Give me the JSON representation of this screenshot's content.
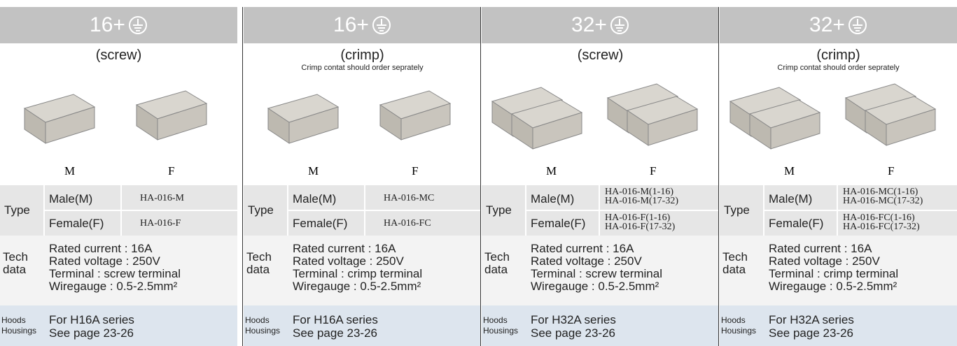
{
  "columns": [
    {
      "header": "16+",
      "variant": "(screw)",
      "m_label": "M",
      "f_label": "F",
      "type_label": "Type",
      "male_label": "Male(M)",
      "male_codes": [
        "HA-016-M"
      ],
      "female_label": "Female(F)",
      "female_codes": [
        "HA-016-F"
      ],
      "tech_label": [
        "Tech",
        "data"
      ],
      "tech": [
        "Rated current : 16A",
        "Rated voltage : 250V",
        "Terminal : screw terminal",
        "Wiregauge : 0.5-2.5mm²"
      ],
      "hoods_label": [
        "Hoods",
        "Housings"
      ],
      "hoods": [
        "For H16A series",
        "See page 23-26"
      ]
    },
    {
      "header": "16+",
      "variant": "(crimp)",
      "note": "Crimp contat should order seprately",
      "m_label": "M",
      "f_label": "F",
      "type_label": "Type",
      "male_label": "Male(M)",
      "male_codes": [
        "HA-016-MC"
      ],
      "female_label": "Female(F)",
      "female_codes": [
        "HA-016-FC"
      ],
      "tech_label": [
        "Tech",
        "data"
      ],
      "tech": [
        "Rated current : 16A",
        "Rated voltage : 250V",
        "Terminal : crimp terminal",
        "Wiregauge : 0.5-2.5mm²"
      ],
      "hoods_label": [
        "Hoods",
        "Housings"
      ],
      "hoods": [
        "For H16A series",
        "See page 23-26"
      ]
    },
    {
      "header": "32+",
      "variant": "(screw)",
      "m_label": "M",
      "f_label": "F",
      "type_label": "Type",
      "male_label": "Male(M)",
      "male_codes": [
        "HA-016-M(1-16)",
        "HA-016-M(17-32)"
      ],
      "female_label": "Female(F)",
      "female_codes": [
        "HA-016-F(1-16)",
        "HA-016-F(17-32)"
      ],
      "tech_label": [
        "Tech",
        "data"
      ],
      "tech": [
        "Rated current : 16A",
        "Rated voltage : 250V",
        "Terminal : screw terminal",
        "Wiregauge : 0.5-2.5mm²"
      ],
      "hoods_label": [
        "Hoods",
        "Housings"
      ],
      "hoods": [
        "For H32A series",
        "See page 23-26"
      ]
    },
    {
      "header": "32+",
      "variant": "(crimp)",
      "note": "Crimp contat should order seprately",
      "m_label": "M",
      "f_label": "F",
      "type_label": "Type",
      "male_label": "Male(M)",
      "male_codes": [
        "HA-016-MC(1-16)",
        "HA-016-MC(17-32)"
      ],
      "female_label": "Female(F)",
      "female_codes": [
        "HA-016-FC(1-16)",
        "HA-016-FC(17-32)"
      ],
      "tech_label": [
        "Tech",
        "data"
      ],
      "tech": [
        "Rated current : 16A",
        "Rated voltage : 250V",
        "Terminal : crimp terminal",
        "Wiregauge : 0.5-2.5mm²"
      ],
      "hoods_label": [
        "Hoods",
        "Housings"
      ],
      "hoods": [
        "For H32A series",
        "See page 23-26"
      ]
    }
  ]
}
